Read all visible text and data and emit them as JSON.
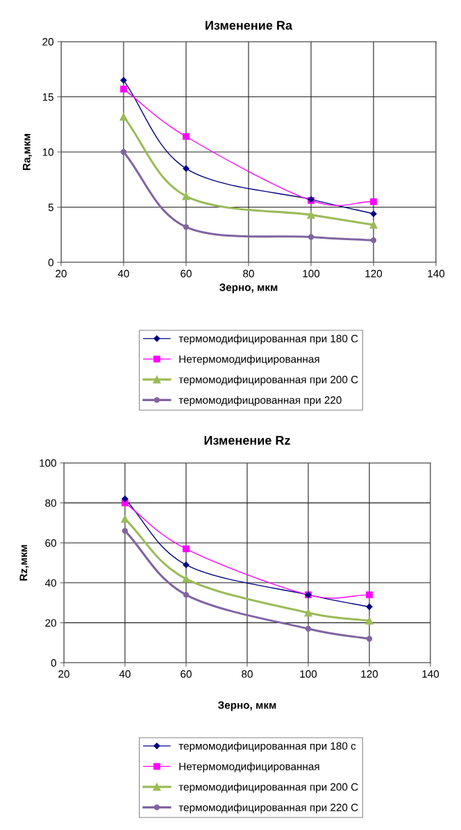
{
  "chart_data": [
    {
      "type": "line",
      "title": "Изменение Ra",
      "xlabel": "Зерно, мкм",
      "ylabel": "Ra,мкм",
      "x": [
        40,
        60,
        100,
        120
      ],
      "xlim": [
        20,
        140
      ],
      "xticks": [
        20,
        40,
        60,
        80,
        100,
        120,
        140
      ],
      "ylim": [
        0,
        20
      ],
      "yticks": [
        0,
        5,
        10,
        15,
        20
      ],
      "grid": true,
      "legend": "bottom",
      "series": [
        {
          "name": "термомодифицированная при 180 С",
          "color": "#000080",
          "marker": "diamond",
          "values": [
            16.5,
            8.5,
            5.7,
            4.4
          ]
        },
        {
          "name": "Нетермомодифицированная",
          "color": "#ff00ff",
          "marker": "square",
          "values": [
            15.7,
            11.4,
            5.6,
            5.5
          ]
        },
        {
          "name": "термомодифицированная при 200 С",
          "color": "#9bbb59",
          "marker": "triangle",
          "values": [
            13.2,
            6.0,
            4.3,
            3.4
          ]
        },
        {
          "name": "термомодифицрованная при 220",
          "color": "#8064a2",
          "marker": "circle",
          "values": [
            10.0,
            3.2,
            2.3,
            2.0
          ]
        }
      ]
    },
    {
      "type": "line",
      "title": "Изменение Rz",
      "xlabel": "Зерно, мкм",
      "ylabel": "Rz,мкм",
      "x": [
        40,
        60,
        100,
        120
      ],
      "xlim": [
        20,
        140
      ],
      "xticks": [
        20,
        40,
        60,
        80,
        100,
        120,
        140
      ],
      "ylim": [
        0,
        100
      ],
      "yticks": [
        0,
        20,
        40,
        60,
        80,
        100
      ],
      "grid": true,
      "legend": "bottom",
      "series": [
        {
          "name": "термомодифицированная при 180 с",
          "color": "#000080",
          "marker": "diamond",
          "values": [
            82,
            49,
            34,
            28
          ]
        },
        {
          "name": "Нетермомодифицированная",
          "color": "#ff00ff",
          "marker": "square",
          "values": [
            80,
            57,
            34,
            34
          ]
        },
        {
          "name": "термомодифицированная при 200 С",
          "color": "#9bbb59",
          "marker": "triangle",
          "values": [
            72,
            42,
            25,
            21
          ]
        },
        {
          "name": "термомодифицированная при 220 С",
          "color": "#8064a2",
          "marker": "circle",
          "values": [
            66,
            34,
            17,
            12
          ]
        }
      ]
    }
  ]
}
